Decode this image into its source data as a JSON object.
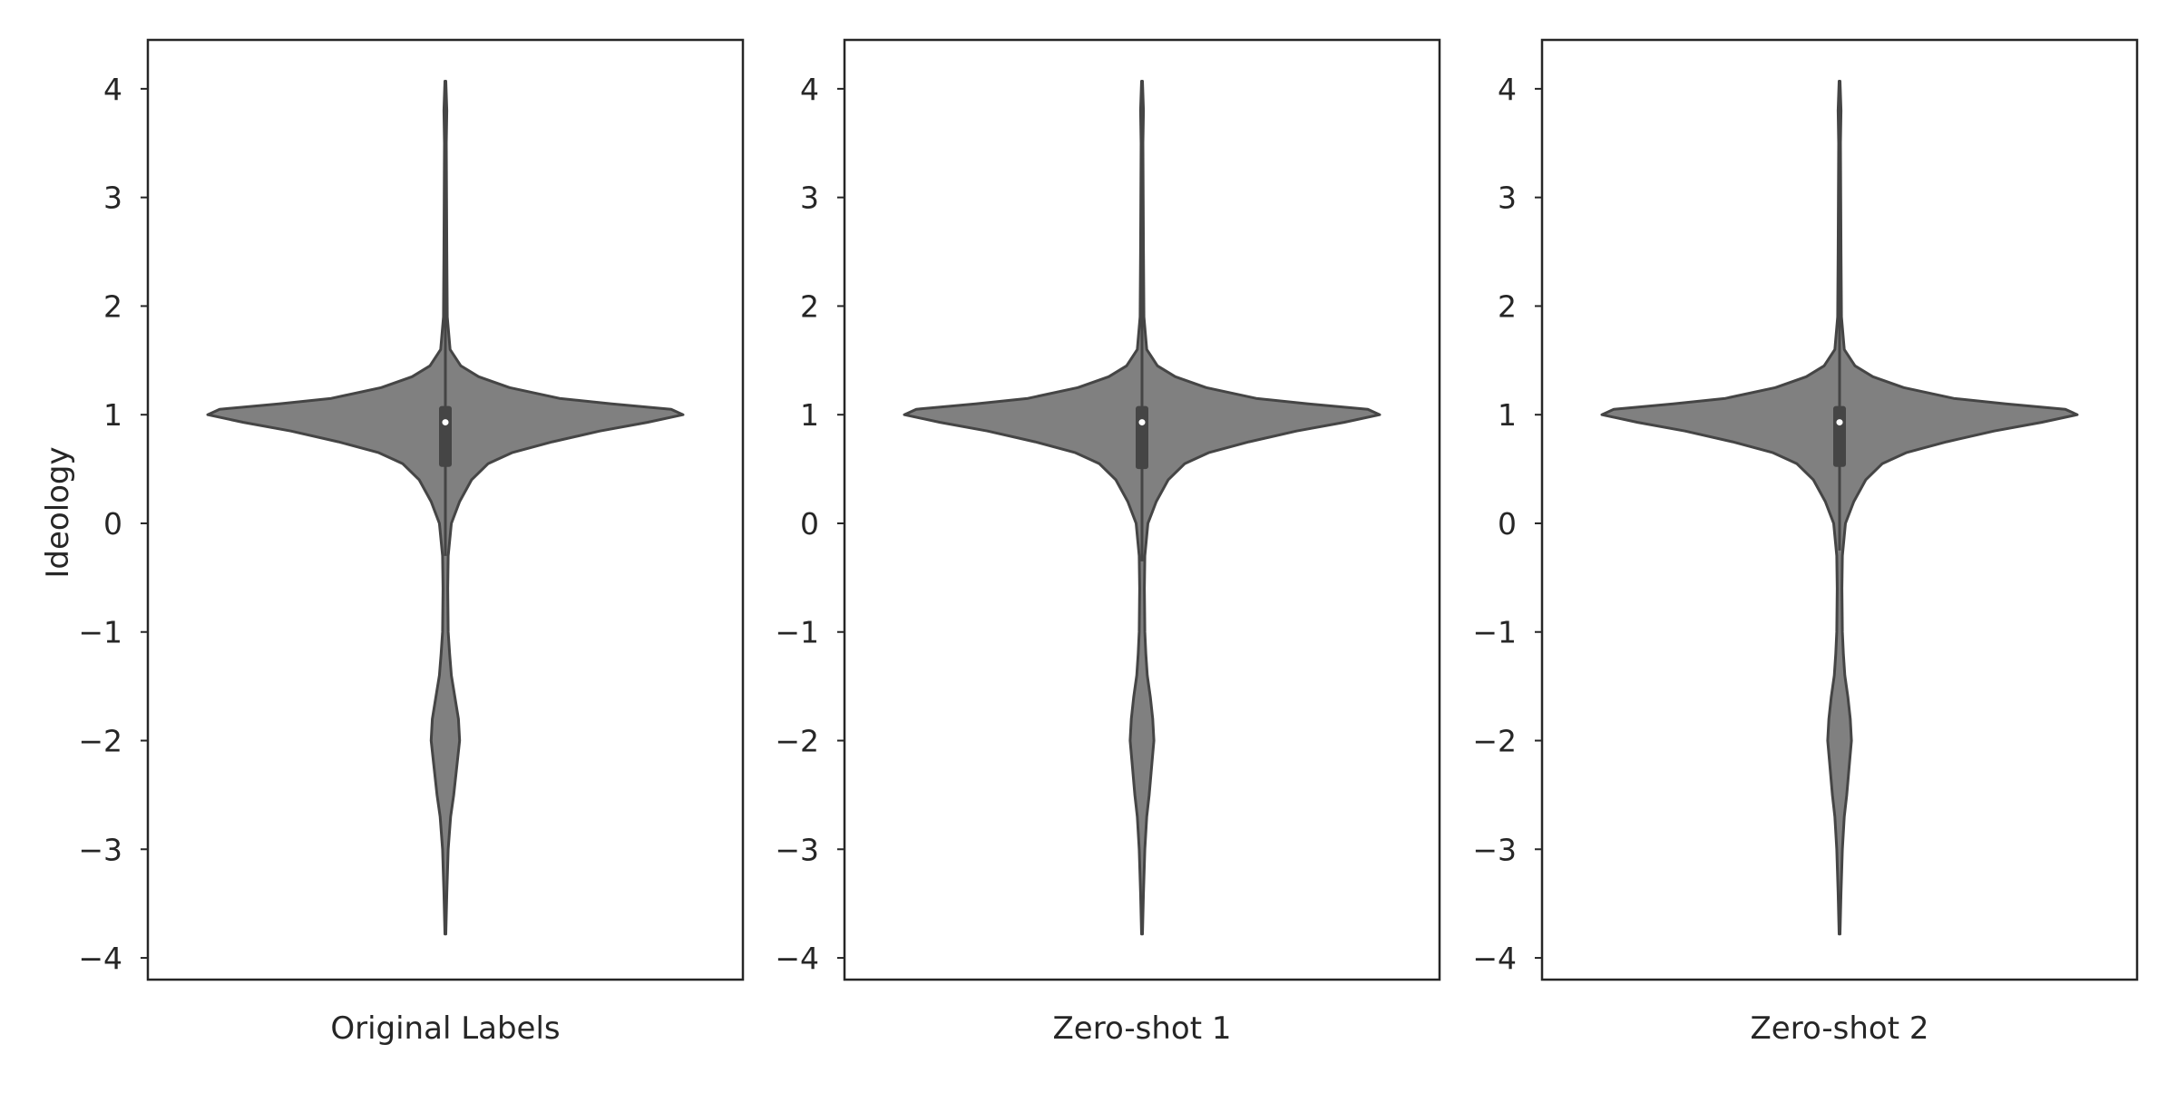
{
  "chart_data": {
    "type": "violin",
    "ylabel": "Ideology",
    "ylim": [
      -4.2,
      4.45
    ],
    "yticks": [
      4,
      3,
      2,
      1,
      0,
      -1,
      -2,
      -3,
      -4
    ],
    "ytick_labels": [
      "4",
      "3",
      "2",
      "1",
      "0",
      "−1",
      "−2",
      "−3",
      "−4"
    ],
    "grid": false,
    "fill_color": "#808080",
    "edge_color": "#454545",
    "panels": [
      {
        "xlabel": "Original Labels",
        "min": -3.78,
        "max": 4.07,
        "q1": 0.52,
        "median": 0.93,
        "q3": 1.08,
        "whisker_low": -0.3,
        "whisker_high": 4.07,
        "density": [
          [
            -3.78,
            0.002
          ],
          [
            -3.4,
            0.006
          ],
          [
            -3.0,
            0.012
          ],
          [
            -2.7,
            0.022
          ],
          [
            -2.5,
            0.035
          ],
          [
            -2.2,
            0.05
          ],
          [
            -2.0,
            0.06
          ],
          [
            -1.8,
            0.055
          ],
          [
            -1.6,
            0.04
          ],
          [
            -1.4,
            0.025
          ],
          [
            -1.2,
            0.018
          ],
          [
            -1.0,
            0.012
          ],
          [
            -0.6,
            0.01
          ],
          [
            -0.3,
            0.012
          ],
          [
            0.0,
            0.025
          ],
          [
            0.2,
            0.06
          ],
          [
            0.4,
            0.11
          ],
          [
            0.55,
            0.18
          ],
          [
            0.65,
            0.28
          ],
          [
            0.75,
            0.45
          ],
          [
            0.85,
            0.65
          ],
          [
            0.93,
            0.85
          ],
          [
            1.0,
            1.0
          ],
          [
            1.05,
            0.95
          ],
          [
            1.1,
            0.7
          ],
          [
            1.15,
            0.48
          ],
          [
            1.25,
            0.27
          ],
          [
            1.35,
            0.14
          ],
          [
            1.45,
            0.065
          ],
          [
            1.6,
            0.02
          ],
          [
            1.9,
            0.008
          ],
          [
            2.5,
            0.006
          ],
          [
            3.0,
            0.005
          ],
          [
            3.5,
            0.004
          ],
          [
            3.8,
            0.006
          ],
          [
            4.07,
            0.002
          ]
        ]
      },
      {
        "xlabel": "Zero-shot 1",
        "min": -3.78,
        "max": 4.07,
        "q1": 0.5,
        "median": 0.93,
        "q3": 1.08,
        "whisker_low": -0.35,
        "whisker_high": 4.07,
        "density": [
          [
            -3.78,
            0.002
          ],
          [
            -3.4,
            0.006
          ],
          [
            -3.0,
            0.012
          ],
          [
            -2.7,
            0.02
          ],
          [
            -2.5,
            0.03
          ],
          [
            -2.2,
            0.042
          ],
          [
            -2.0,
            0.05
          ],
          [
            -1.8,
            0.045
          ],
          [
            -1.6,
            0.035
          ],
          [
            -1.4,
            0.022
          ],
          [
            -1.2,
            0.016
          ],
          [
            -1.0,
            0.012
          ],
          [
            -0.6,
            0.01
          ],
          [
            -0.3,
            0.012
          ],
          [
            0.0,
            0.025
          ],
          [
            0.2,
            0.06
          ],
          [
            0.4,
            0.11
          ],
          [
            0.55,
            0.18
          ],
          [
            0.65,
            0.28
          ],
          [
            0.75,
            0.45
          ],
          [
            0.85,
            0.65
          ],
          [
            0.93,
            0.85
          ],
          [
            1.0,
            1.0
          ],
          [
            1.05,
            0.95
          ],
          [
            1.1,
            0.7
          ],
          [
            1.15,
            0.48
          ],
          [
            1.25,
            0.27
          ],
          [
            1.35,
            0.14
          ],
          [
            1.45,
            0.065
          ],
          [
            1.6,
            0.02
          ],
          [
            1.9,
            0.008
          ],
          [
            2.5,
            0.006
          ],
          [
            3.0,
            0.005
          ],
          [
            3.5,
            0.004
          ],
          [
            3.8,
            0.006
          ],
          [
            4.07,
            0.002
          ]
        ]
      },
      {
        "xlabel": "Zero-shot 2",
        "min": -3.78,
        "max": 4.07,
        "q1": 0.52,
        "median": 0.93,
        "q3": 1.08,
        "whisker_low": -0.25,
        "whisker_high": 4.07,
        "density": [
          [
            -3.78,
            0.002
          ],
          [
            -3.4,
            0.006
          ],
          [
            -3.0,
            0.012
          ],
          [
            -2.7,
            0.02
          ],
          [
            -2.5,
            0.03
          ],
          [
            -2.2,
            0.042
          ],
          [
            -2.0,
            0.05
          ],
          [
            -1.8,
            0.045
          ],
          [
            -1.6,
            0.035
          ],
          [
            -1.4,
            0.022
          ],
          [
            -1.2,
            0.016
          ],
          [
            -1.0,
            0.012
          ],
          [
            -0.6,
            0.01
          ],
          [
            -0.3,
            0.012
          ],
          [
            0.0,
            0.025
          ],
          [
            0.2,
            0.06
          ],
          [
            0.4,
            0.11
          ],
          [
            0.55,
            0.18
          ],
          [
            0.65,
            0.28
          ],
          [
            0.75,
            0.45
          ],
          [
            0.85,
            0.65
          ],
          [
            0.93,
            0.85
          ],
          [
            1.0,
            1.0
          ],
          [
            1.05,
            0.95
          ],
          [
            1.1,
            0.7
          ],
          [
            1.15,
            0.48
          ],
          [
            1.25,
            0.27
          ],
          [
            1.35,
            0.14
          ],
          [
            1.45,
            0.065
          ],
          [
            1.6,
            0.02
          ],
          [
            1.9,
            0.008
          ],
          [
            2.5,
            0.006
          ],
          [
            3.0,
            0.005
          ],
          [
            3.5,
            0.004
          ],
          [
            3.8,
            0.006
          ],
          [
            4.07,
            0.002
          ]
        ]
      }
    ]
  }
}
